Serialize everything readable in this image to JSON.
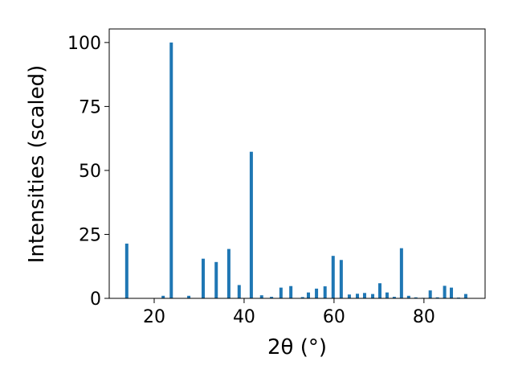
{
  "chart_data": {
    "type": "bar",
    "xlabel": "2θ (°)",
    "ylabel": "Intensities (scaled)",
    "x": [
      13.9,
      22.0,
      23.8,
      27.7,
      30.9,
      33.8,
      36.6,
      38.9,
      41.6,
      43.9,
      46.1,
      48.2,
      50.4,
      53.0,
      54.3,
      56.1,
      58.0,
      59.8,
      61.6,
      63.4,
      65.2,
      66.8,
      68.6,
      70.2,
      71.8,
      73.4,
      75.0,
      76.6,
      78.2,
      79.8,
      81.4,
      83.0,
      84.6,
      86.1,
      87.7,
      89.3
    ],
    "values": [
      21.4,
      1.0,
      100,
      1.0,
      15.5,
      14.2,
      19.3,
      5.2,
      57.3,
      1.2,
      0.6,
      4.2,
      4.8,
      0.5,
      2.3,
      3.8,
      4.7,
      16.6,
      15.0,
      1.5,
      1.8,
      2.1,
      1.7,
      5.9,
      2.3,
      0.6,
      19.6,
      1.0,
      0.4,
      0.2,
      3.1,
      0.4,
      4.9,
      4.2,
      0.3,
      1.7
    ],
    "color": "#1f77b4",
    "xlim": [
      10,
      93.6
    ],
    "ylim": [
      0,
      105.3
    ],
    "xticks": [
      20,
      40,
      60,
      80
    ],
    "yticks": [
      0,
      25,
      50,
      75,
      100
    ]
  }
}
